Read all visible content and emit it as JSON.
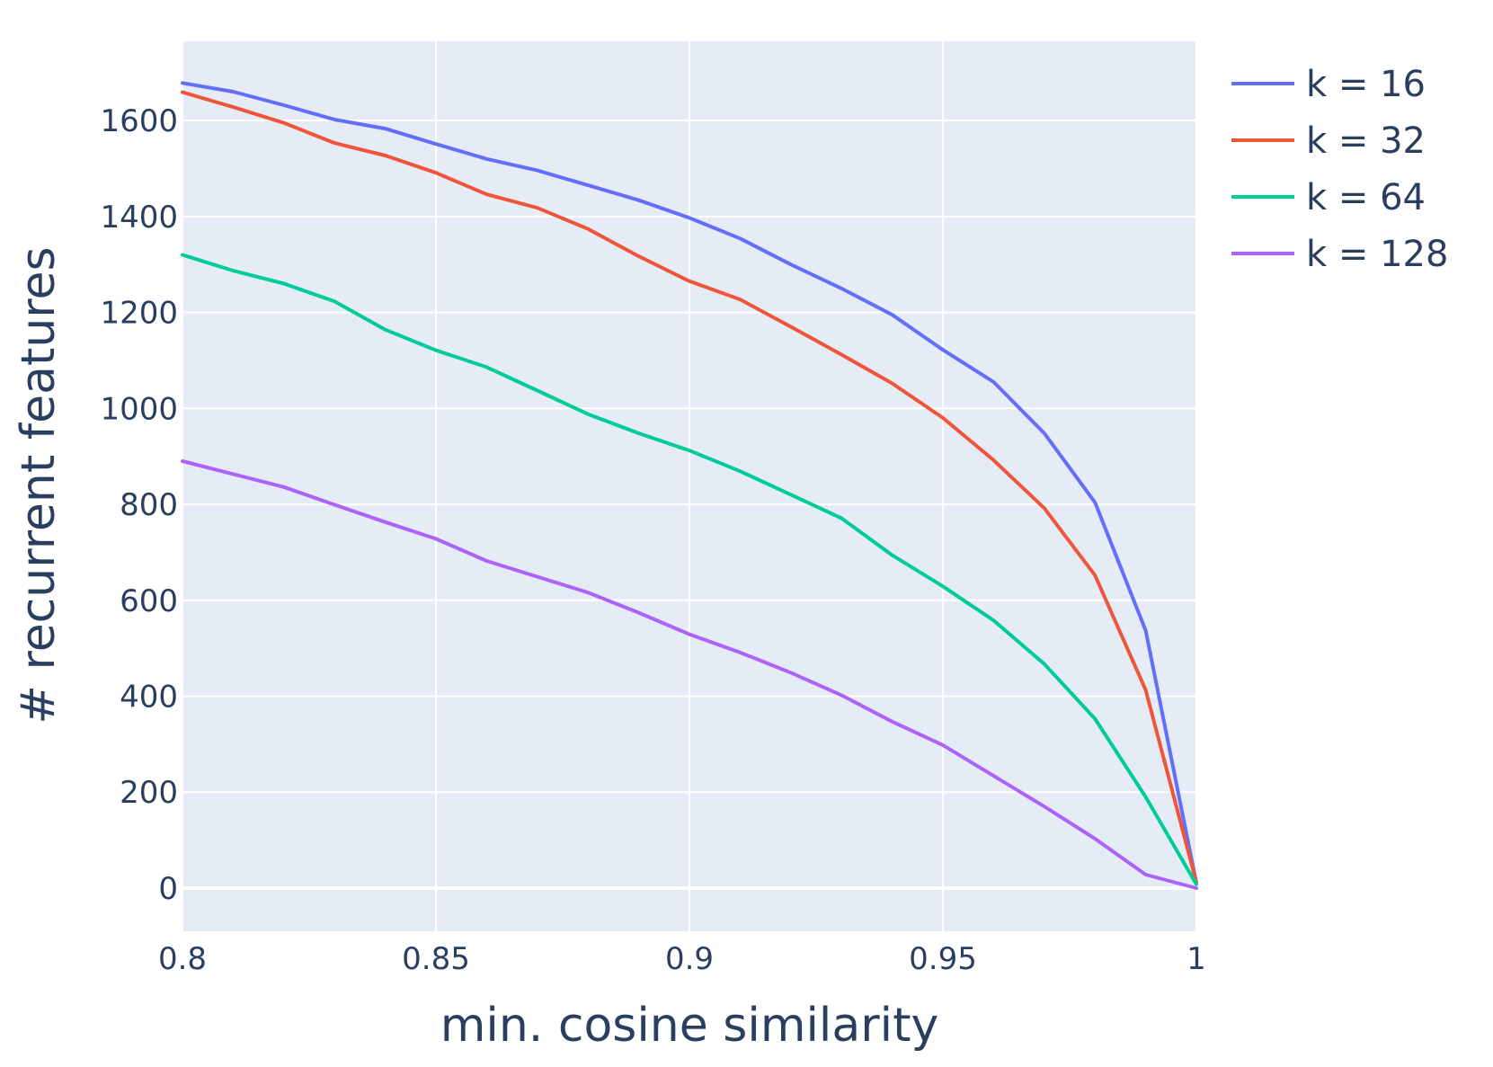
{
  "chart_data": {
    "type": "line",
    "xlabel": "min. cosine similarity",
    "ylabel": "# recurrent features",
    "xlim": [
      0.8,
      1.0
    ],
    "ylim": [
      -90,
      1765
    ],
    "x_ticks": [
      0.8,
      0.85,
      0.9,
      0.95,
      1.0
    ],
    "x_tick_labels": [
      "0.8",
      "0.85",
      "0.9",
      "0.95",
      "1"
    ],
    "y_ticks": [
      0,
      200,
      400,
      600,
      800,
      1000,
      1200,
      1400,
      1600
    ],
    "y_tick_labels": [
      "0",
      "200",
      "400",
      "600",
      "800",
      "1000",
      "1200",
      "1400",
      "1600"
    ],
    "grid": true,
    "legend_position": "top-right, outside plot",
    "plot_background": "#e5ecf6",
    "grid_color": "#ffffff",
    "x": [
      0.8,
      0.81,
      0.82,
      0.83,
      0.84,
      0.85,
      0.86,
      0.87,
      0.88,
      0.89,
      0.9,
      0.91,
      0.92,
      0.93,
      0.94,
      0.95,
      0.96,
      0.97,
      0.98,
      0.99,
      1.0
    ],
    "series": [
      {
        "name": "k = 16",
        "color": "#636efa",
        "values": [
          1678,
          1660,
          1632,
          1602,
          1583,
          1551,
          1520,
          1496,
          1465,
          1434,
          1397,
          1354,
          1300,
          1250,
          1195,
          1122,
          1055,
          948,
          804,
          537,
          10
        ]
      },
      {
        "name": "k = 32",
        "color": "#ef553b",
        "values": [
          1659,
          1628,
          1595,
          1553,
          1527,
          1491,
          1446,
          1418,
          1374,
          1317,
          1265,
          1227,
          1170,
          1112,
          1052,
          980,
          892,
          792,
          652,
          413,
          12
        ]
      },
      {
        "name": "k = 64",
        "color": "#00cc96",
        "values": [
          1320,
          1287,
          1260,
          1223,
          1164,
          1121,
          1086,
          1037,
          988,
          948,
          912,
          869,
          820,
          771,
          694,
          629,
          558,
          467,
          353,
          190,
          8
        ]
      },
      {
        "name": "k = 128",
        "color": "#ab63fa",
        "values": [
          890,
          863,
          836,
          799,
          763,
          728,
          682,
          649,
          616,
          574,
          529,
          491,
          449,
          402,
          347,
          298,
          234,
          170,
          103,
          28,
          0
        ]
      }
    ]
  }
}
